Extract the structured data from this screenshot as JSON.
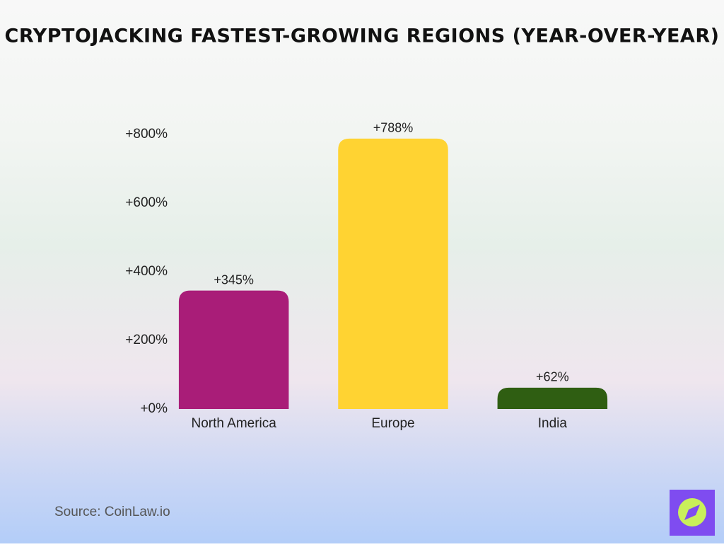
{
  "chart_data": {
    "type": "bar",
    "title": "CRYPTOJACKING FASTEST-GROWING REGIONS (YEAR-OVER-YEAR)",
    "categories": [
      "North America",
      "Europe",
      "India"
    ],
    "values": [
      345,
      788,
      62
    ],
    "value_labels": [
      "+345%",
      "+788%",
      "+62%"
    ],
    "colors": [
      "#a91d78",
      "#ffd332",
      "#2f5e12"
    ],
    "ylim": [
      0,
      800
    ],
    "yticks": [
      {
        "value": 0,
        "label": "+0%"
      },
      {
        "value": 200,
        "label": "+200%"
      },
      {
        "value": 400,
        "label": "+400%"
      },
      {
        "value": 600,
        "label": "+600%"
      },
      {
        "value": 800,
        "label": "+800%"
      }
    ],
    "grid": false,
    "source": "Source: CoinLaw.io"
  }
}
